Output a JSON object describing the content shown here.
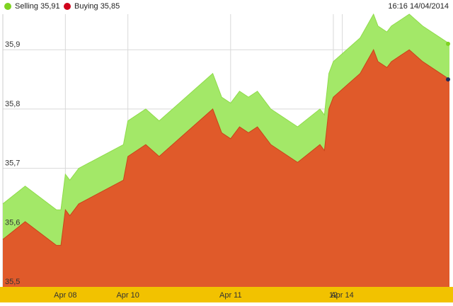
{
  "legend": {
    "selling": {
      "label": "Selling 35,91",
      "color": "#7ed321"
    },
    "buying": {
      "label": "Buying 35,85",
      "color": "#d0021b"
    }
  },
  "timestamp": "16:16 14/04/2014",
  "chart_data": {
    "type": "area",
    "title": "",
    "xlabel": "",
    "ylabel": "",
    "ylim": [
      35.5,
      35.96
    ],
    "grid": true,
    "legend_position": "top-left",
    "y_ticks": [
      "35,5",
      "35,6",
      "35,7",
      "35,8",
      "35,9"
    ],
    "y_tick_values": [
      35.5,
      35.6,
      35.7,
      35.8,
      35.9
    ],
    "x_ticks": [
      "Apr 08",
      "Apr 10",
      "Apr 11",
      "Apr 14"
    ],
    "x_tick_positions": [
      14,
      28,
      51,
      76
    ],
    "x_extra_label": "12",
    "x_extra_position": 74,
    "x_range": [
      0,
      100
    ],
    "colors": {
      "selling_fill": "#a3e868",
      "buying_fill": "#e05a2a",
      "axis_band": "#f2c200"
    },
    "x": [
      0,
      5,
      12,
      13,
      14,
      15,
      17,
      27,
      28,
      32,
      35,
      47,
      49,
      51,
      53,
      55,
      57,
      58,
      59,
      60,
      62,
      66,
      71,
      72,
      73,
      74,
      77,
      80,
      83,
      84,
      86,
      87,
      89,
      91,
      94,
      98,
      100
    ],
    "series": [
      {
        "name": "Selling",
        "values": [
          35.64,
          35.67,
          35.63,
          35.63,
          35.69,
          35.68,
          35.7,
          35.74,
          35.78,
          35.8,
          35.78,
          35.86,
          35.82,
          35.81,
          35.83,
          35.82,
          35.83,
          35.82,
          35.81,
          35.8,
          35.79,
          35.77,
          35.8,
          35.79,
          35.86,
          35.88,
          35.9,
          35.92,
          35.96,
          35.94,
          35.93,
          35.94,
          35.95,
          35.96,
          35.94,
          35.92,
          35.91
        ]
      },
      {
        "name": "Buying",
        "values": [
          35.58,
          35.61,
          35.57,
          35.57,
          35.63,
          35.62,
          35.64,
          35.68,
          35.72,
          35.74,
          35.72,
          35.8,
          35.76,
          35.75,
          35.77,
          35.76,
          35.77,
          35.76,
          35.75,
          35.74,
          35.73,
          35.71,
          35.74,
          35.73,
          35.8,
          35.82,
          35.84,
          35.86,
          35.9,
          35.88,
          35.87,
          35.88,
          35.89,
          35.9,
          35.88,
          35.86,
          35.85
        ]
      }
    ]
  }
}
